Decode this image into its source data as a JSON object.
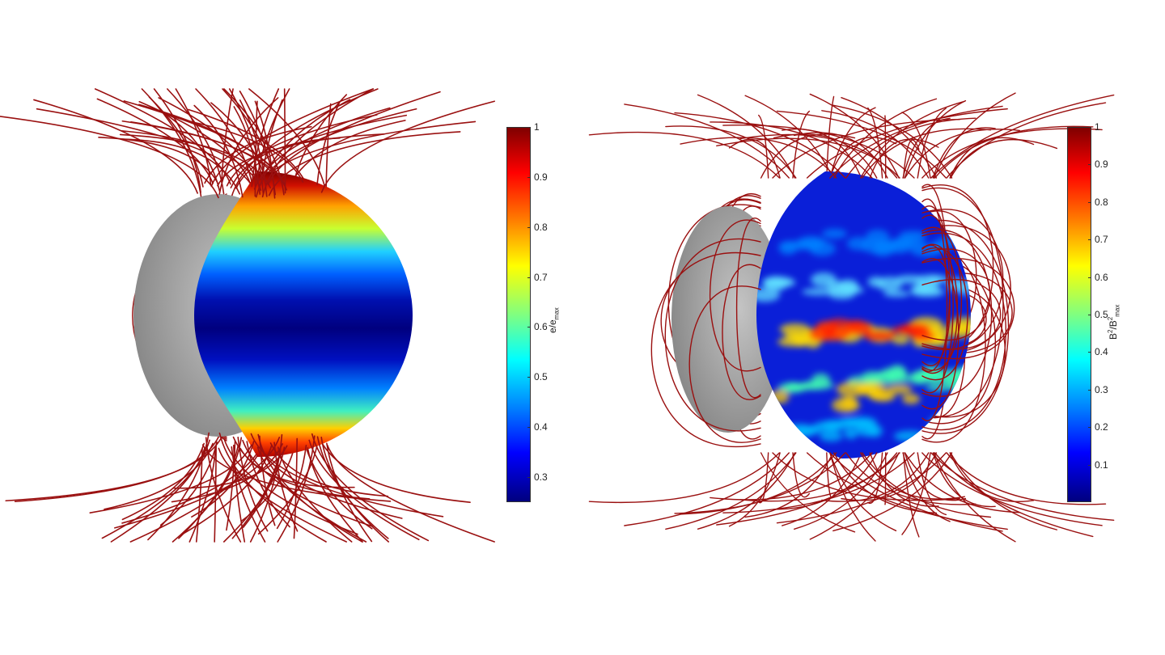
{
  "figure": {
    "colormap": [
      "#00007f",
      "#0000ff",
      "#007fff",
      "#00ffff",
      "#7fff7f",
      "#ffff00",
      "#ff7f00",
      "#ff0000",
      "#7f0000"
    ],
    "field_line_color": "#9a1010",
    "left_panel": {
      "colorbar": {
        "ticks": [
          "1",
          "0.9",
          "0.8",
          "0.7",
          "0.6",
          "0.5",
          "0.4",
          "0.3"
        ],
        "label_base": "e/e",
        "label_sub": "max"
      }
    },
    "right_panel": {
      "colorbar": {
        "ticks": [
          "1",
          "0.9",
          "0.8",
          "0.7",
          "0.6",
          "0.5",
          "0.4",
          "0.3",
          "0.2",
          "0.1"
        ],
        "label_b": "B",
        "label_sup1": "2",
        "label_slash": "/B",
        "label_sup2": "2",
        "label_sub": "max"
      }
    }
  }
}
